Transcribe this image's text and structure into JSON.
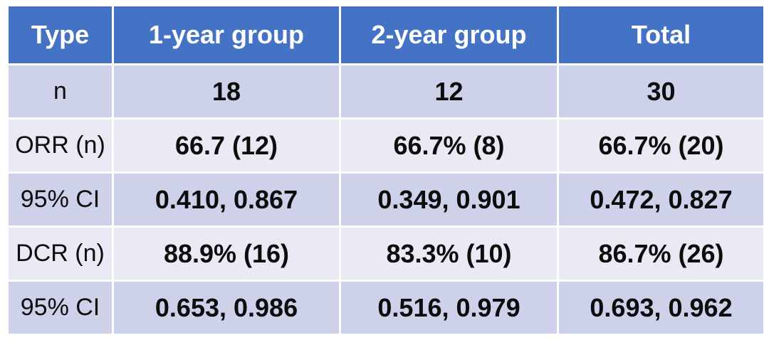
{
  "table": {
    "columns": [
      "Type",
      "1-year group",
      "2-year group",
      "Total"
    ],
    "rows": [
      {
        "label": "n",
        "values": [
          "18",
          "12",
          "30"
        ]
      },
      {
        "label": "ORR (n)",
        "values": [
          "66.7 (12)",
          "66.7% (8)",
          "66.7% (20)"
        ]
      },
      {
        "label": "95% CI",
        "values": [
          "0.410, 0.867",
          "0.349, 0.901",
          "0.472, 0.827"
        ]
      },
      {
        "label": "DCR (n)",
        "values": [
          "88.9% (16)",
          "83.3% (10)",
          "86.7% (26)"
        ]
      },
      {
        "label": "95% CI",
        "values": [
          "0.653, 0.986",
          "0.516, 0.979",
          "0.693, 0.962"
        ]
      }
    ]
  },
  "colors": {
    "header_bg": "#4472C4",
    "header_text": "#FFFFFF",
    "band_dark": "#CDD1E9",
    "band_light": "#E9EAF4",
    "cell_gap": "#FFFFFF",
    "body_text": "#0D0D0D"
  },
  "chart_data": {
    "type": "table",
    "columns": [
      "Type",
      "1-year group",
      "2-year group",
      "Total"
    ],
    "rows": [
      [
        "n",
        "18",
        "12",
        "30"
      ],
      [
        "ORR (n)",
        "66.7 (12)",
        "66.7% (8)",
        "66.7% (20)"
      ],
      [
        "95% CI",
        "0.410, 0.867",
        "0.349, 0.901",
        "0.472, 0.827"
      ],
      [
        "DCR (n)",
        "88.9% (16)",
        "83.3% (10)",
        "86.7% (26)"
      ],
      [
        "95% CI",
        "0.653, 0.986",
        "0.516, 0.979",
        "0.693, 0.962"
      ]
    ]
  }
}
